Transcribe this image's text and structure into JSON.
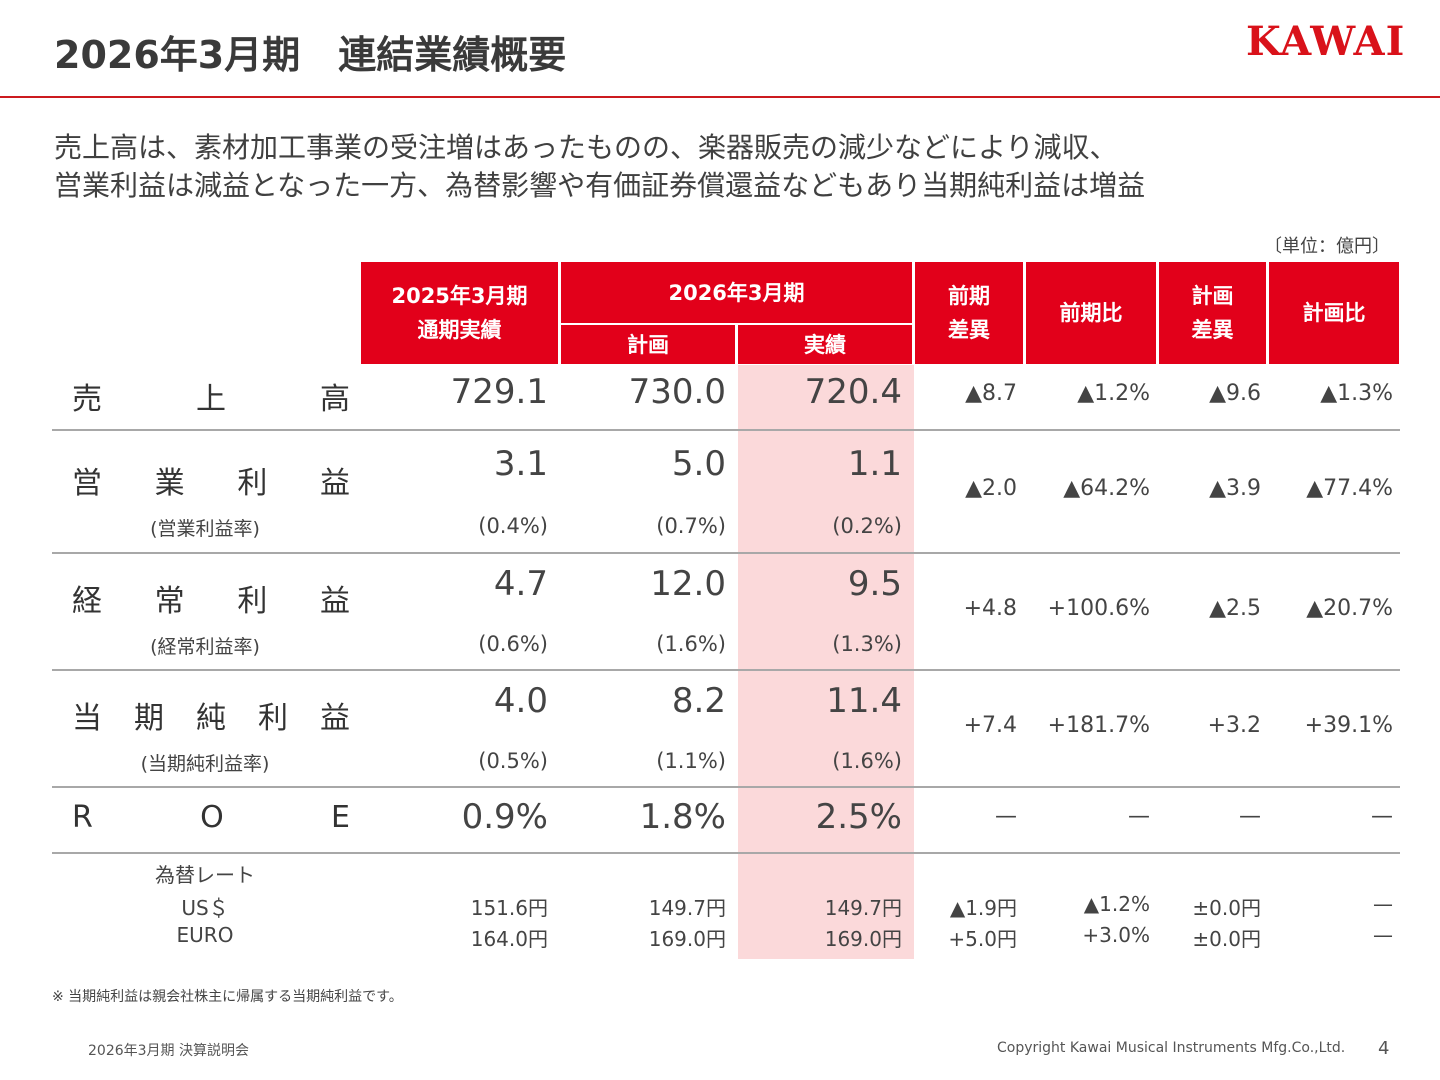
{
  "header": {
    "title": "2026年3月期　連結業績概要",
    "logo": "KAWAI"
  },
  "lead": [
    "売上高は、素材加工事業の受注増はあったものの、楽器販売の減少などにより減収、",
    "営業利益は減益となった一方、為替影響や有価証券償還益などもあり当期純利益は増益"
  ],
  "unit_label": "〔単位：億円〕",
  "table": {
    "headers": {
      "fy2025": [
        "2025年3月期",
        "通期実績"
      ],
      "fy2026": "2026年3月期",
      "plan": "計画",
      "actual": "実績",
      "yoy_diff": [
        "前期",
        "差異"
      ],
      "yoy_ratio": "前期比",
      "plan_diff": [
        "計画",
        "差異"
      ],
      "plan_ratio": "計画比"
    },
    "rows": [
      {
        "label": [
          "売",
          "上",
          "高"
        ],
        "sub": "",
        "fy2025": "729.1",
        "plan": "730.0",
        "actual": "720.4",
        "fy2025_rate": "",
        "plan_rate": "",
        "actual_rate": "",
        "yoy_diff": "▲8.7",
        "yoy_ratio": "▲1.2%",
        "plan_diff": "▲9.6",
        "plan_ratio": "▲1.3%"
      },
      {
        "label": [
          "営",
          "業",
          "利",
          "益"
        ],
        "sub": "(営業利益率)",
        "fy2025": "3.1",
        "plan": "5.0",
        "actual": "1.1",
        "fy2025_rate": "(0.4%)",
        "plan_rate": "(0.7%)",
        "actual_rate": "(0.2%)",
        "yoy_diff": "▲2.0",
        "yoy_ratio": "▲64.2%",
        "plan_diff": "▲3.9",
        "plan_ratio": "▲77.4%"
      },
      {
        "label": [
          "経",
          "常",
          "利",
          "益"
        ],
        "sub": "(経常利益率)",
        "fy2025": "4.7",
        "plan": "12.0",
        "actual": "9.5",
        "fy2025_rate": "(0.6%)",
        "plan_rate": "(1.6%)",
        "actual_rate": "(1.3%)",
        "yoy_diff": "+4.8",
        "yoy_ratio": "+100.6%",
        "plan_diff": "▲2.5",
        "plan_ratio": "▲20.7%"
      },
      {
        "label": [
          "当",
          "期",
          "純",
          "利",
          "益"
        ],
        "sub": "(当期純利益率)",
        "fy2025": "4.0",
        "plan": "8.2",
        "actual": "11.4",
        "fy2025_rate": "(0.5%)",
        "plan_rate": "(1.1%)",
        "actual_rate": "(1.6%)",
        "yoy_diff": "+7.4",
        "yoy_ratio": "+181.7%",
        "plan_diff": "+3.2",
        "plan_ratio": "+39.1%"
      },
      {
        "label": [
          "R",
          "O",
          "E"
        ],
        "sub": "",
        "fy2025": "0.9%",
        "plan": "1.8%",
        "actual": "2.5%",
        "fy2025_rate": "",
        "plan_rate": "",
        "actual_rate": "",
        "yoy_diff": "—",
        "yoy_ratio": "—",
        "plan_diff": "—",
        "plan_ratio": "—"
      }
    ],
    "fx": {
      "title": "為替レート",
      "rows": [
        {
          "label": "US＄",
          "fy2025": "151.6円",
          "plan": "149.7円",
          "actual": "149.7円",
          "yoy_diff": "▲1.9円",
          "yoy_ratio": "▲1.2%",
          "plan_diff": "±0.0円",
          "plan_ratio": "—"
        },
        {
          "label": "EURO",
          "fy2025": "164.0円",
          "plan": "169.0円",
          "actual": "169.0円",
          "yoy_diff": "+5.0円",
          "yoy_ratio": "+3.0%",
          "plan_diff": "±0.0円",
          "plan_ratio": "—"
        }
      ]
    }
  },
  "note": "※ 当期純利益は親会社株主に帰属する当期純利益です。",
  "footer": {
    "left": "2026年3月期 決算説明会",
    "copyright": "Copyright  Kawai Musical Instruments Mfg.Co.,Ltd.",
    "page": "4"
  }
}
